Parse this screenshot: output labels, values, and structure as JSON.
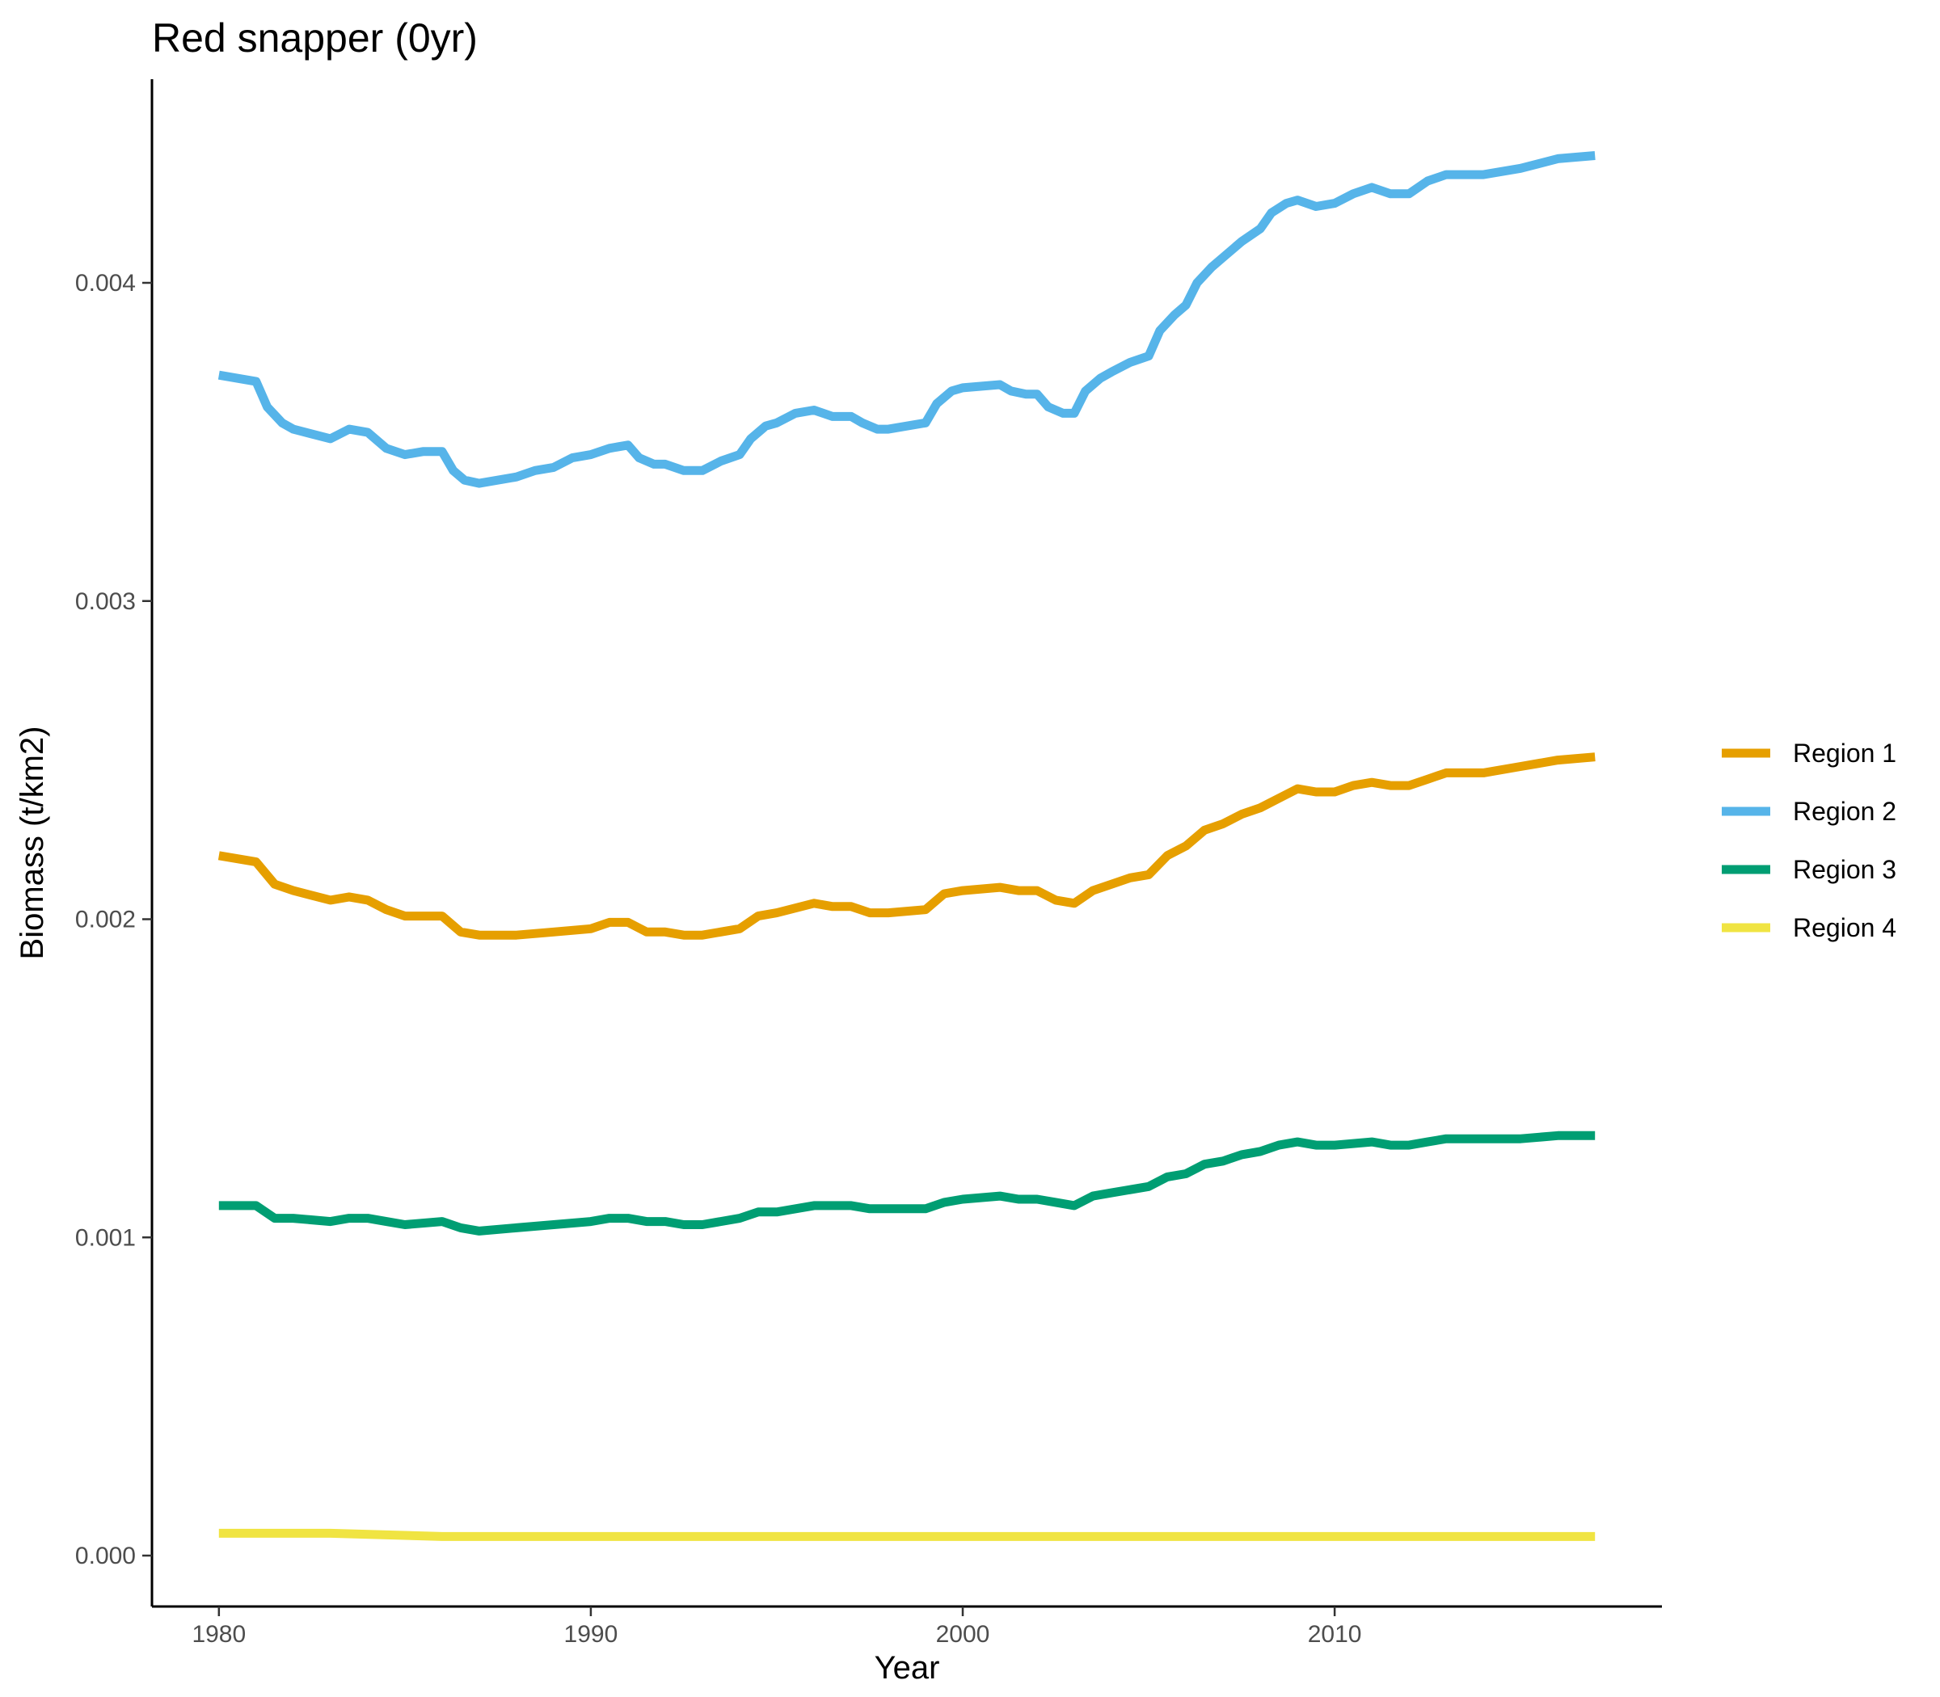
{
  "chart_data": {
    "type": "line",
    "title": "Red snapper (0yr)",
    "xlabel": "Year",
    "ylabel": "Biomass (t/km2)",
    "xlim": [
      1978.2,
      2018.8
    ],
    "ylim": [
      -0.00016,
      0.00464
    ],
    "x_ticks": [
      1980,
      1990,
      2000,
      2010
    ],
    "x_tick_labels": [
      "1980",
      "1990",
      "2000",
      "2010"
    ],
    "y_ticks": [
      0.0,
      0.001,
      0.002,
      0.003,
      0.004
    ],
    "y_tick_labels": [
      "0.000",
      "0.001",
      "0.002",
      "0.003",
      "0.004"
    ],
    "grid": false,
    "legend_position": "right",
    "series": [
      {
        "name": "Region 1",
        "color": "#E69F00",
        "points": [
          [
            1980,
            0.0022
          ],
          [
            1981,
            0.00218
          ],
          [
            1981.5,
            0.00211
          ],
          [
            1982,
            0.00209
          ],
          [
            1983,
            0.00206
          ],
          [
            1983.5,
            0.00207
          ],
          [
            1984,
            0.00206
          ],
          [
            1984.5,
            0.00203
          ],
          [
            1985,
            0.00201
          ],
          [
            1986,
            0.00201
          ],
          [
            1986.5,
            0.00196
          ],
          [
            1987,
            0.00195
          ],
          [
            1988,
            0.00195
          ],
          [
            1989,
            0.00196
          ],
          [
            1990,
            0.00197
          ],
          [
            1990.5,
            0.00199
          ],
          [
            1991,
            0.00199
          ],
          [
            1991.5,
            0.00196
          ],
          [
            1992,
            0.00196
          ],
          [
            1992.5,
            0.00195
          ],
          [
            1993,
            0.00195
          ],
          [
            1994,
            0.00197
          ],
          [
            1994.5,
            0.00201
          ],
          [
            1995,
            0.00202
          ],
          [
            1996,
            0.00205
          ],
          [
            1996.5,
            0.00204
          ],
          [
            1997,
            0.00204
          ],
          [
            1997.5,
            0.00202
          ],
          [
            1998,
            0.00202
          ],
          [
            1999,
            0.00203
          ],
          [
            1999.5,
            0.00208
          ],
          [
            2000,
            0.00209
          ],
          [
            2001,
            0.0021
          ],
          [
            2001.5,
            0.00209
          ],
          [
            2002,
            0.00209
          ],
          [
            2002.5,
            0.00206
          ],
          [
            2003,
            0.00205
          ],
          [
            2003.5,
            0.00209
          ],
          [
            2004,
            0.00211
          ],
          [
            2004.5,
            0.00213
          ],
          [
            2005,
            0.00214
          ],
          [
            2005.5,
            0.0022
          ],
          [
            2006,
            0.00223
          ],
          [
            2006.5,
            0.00228
          ],
          [
            2007,
            0.0023
          ],
          [
            2007.5,
            0.00233
          ],
          [
            2008,
            0.00235
          ],
          [
            2008.5,
            0.00238
          ],
          [
            2009,
            0.00241
          ],
          [
            2009.5,
            0.0024
          ],
          [
            2010,
            0.0024
          ],
          [
            2010.5,
            0.00242
          ],
          [
            2011,
            0.00243
          ],
          [
            2011.5,
            0.00242
          ],
          [
            2012,
            0.00242
          ],
          [
            2012.5,
            0.00244
          ],
          [
            2013,
            0.00246
          ],
          [
            2014,
            0.00246
          ],
          [
            2015,
            0.00248
          ],
          [
            2016,
            0.0025
          ],
          [
            2017,
            0.00251
          ]
        ]
      },
      {
        "name": "Region 2",
        "color": "#56B4E9",
        "points": [
          [
            1980,
            0.00371
          ],
          [
            1981,
            0.00369
          ],
          [
            1981.3,
            0.00361
          ],
          [
            1981.7,
            0.00356
          ],
          [
            1982,
            0.00354
          ],
          [
            1983,
            0.00351
          ],
          [
            1983.5,
            0.00354
          ],
          [
            1984,
            0.00353
          ],
          [
            1984.5,
            0.00348
          ],
          [
            1985,
            0.00346
          ],
          [
            1985.5,
            0.00347
          ],
          [
            1986,
            0.00347
          ],
          [
            1986.3,
            0.00341
          ],
          [
            1986.6,
            0.00338
          ],
          [
            1987,
            0.00337
          ],
          [
            1988,
            0.00339
          ],
          [
            1988.5,
            0.00341
          ],
          [
            1989,
            0.00342
          ],
          [
            1989.5,
            0.00345
          ],
          [
            1990,
            0.00346
          ],
          [
            1990.5,
            0.00348
          ],
          [
            1991,
            0.00349
          ],
          [
            1991.3,
            0.00345
          ],
          [
            1991.7,
            0.00343
          ],
          [
            1992,
            0.00343
          ],
          [
            1992.5,
            0.00341
          ],
          [
            1993,
            0.00341
          ],
          [
            1993.5,
            0.00344
          ],
          [
            1994,
            0.00346
          ],
          [
            1994.3,
            0.00351
          ],
          [
            1994.7,
            0.00355
          ],
          [
            1995,
            0.00356
          ],
          [
            1995.5,
            0.00359
          ],
          [
            1996,
            0.0036
          ],
          [
            1996.5,
            0.00358
          ],
          [
            1997,
            0.00358
          ],
          [
            1997.3,
            0.00356
          ],
          [
            1997.7,
            0.00354
          ],
          [
            1998,
            0.00354
          ],
          [
            1999,
            0.00356
          ],
          [
            1999.3,
            0.00362
          ],
          [
            1999.7,
            0.00366
          ],
          [
            2000,
            0.00367
          ],
          [
            2001,
            0.00368
          ],
          [
            2001.3,
            0.00366
          ],
          [
            2001.7,
            0.00365
          ],
          [
            2002,
            0.00365
          ],
          [
            2002.3,
            0.00361
          ],
          [
            2002.7,
            0.00359
          ],
          [
            2003,
            0.00359
          ],
          [
            2003.3,
            0.00366
          ],
          [
            2003.7,
            0.0037
          ],
          [
            2004,
            0.00372
          ],
          [
            2004.5,
            0.00375
          ],
          [
            2005,
            0.00377
          ],
          [
            2005.3,
            0.00385
          ],
          [
            2005.7,
            0.0039
          ],
          [
            2006,
            0.00393
          ],
          [
            2006.3,
            0.004
          ],
          [
            2006.7,
            0.00405
          ],
          [
            2007,
            0.00408
          ],
          [
            2007.5,
            0.00413
          ],
          [
            2008,
            0.00417
          ],
          [
            2008.3,
            0.00422
          ],
          [
            2008.7,
            0.00425
          ],
          [
            2009,
            0.00426
          ],
          [
            2009.5,
            0.00424
          ],
          [
            2010,
            0.00425
          ],
          [
            2010.5,
            0.00428
          ],
          [
            2011,
            0.0043
          ],
          [
            2011.5,
            0.00428
          ],
          [
            2012,
            0.00428
          ],
          [
            2012.5,
            0.00432
          ],
          [
            2013,
            0.00434
          ],
          [
            2014,
            0.00434
          ],
          [
            2015,
            0.00436
          ],
          [
            2016,
            0.00439
          ],
          [
            2017,
            0.0044
          ]
        ]
      },
      {
        "name": "Region 3",
        "color": "#009E73",
        "points": [
          [
            1980,
            0.0011
          ],
          [
            1981,
            0.0011
          ],
          [
            1981.5,
            0.00106
          ],
          [
            1982,
            0.00106
          ],
          [
            1983,
            0.00105
          ],
          [
            1983.5,
            0.00106
          ],
          [
            1984,
            0.00106
          ],
          [
            1984.5,
            0.00105
          ],
          [
            1985,
            0.00104
          ],
          [
            1986,
            0.00105
          ],
          [
            1986.5,
            0.00103
          ],
          [
            1987,
            0.00102
          ],
          [
            1988,
            0.00103
          ],
          [
            1989,
            0.00104
          ],
          [
            1990,
            0.00105
          ],
          [
            1990.5,
            0.00106
          ],
          [
            1991,
            0.00106
          ],
          [
            1991.5,
            0.00105
          ],
          [
            1992,
            0.00105
          ],
          [
            1992.5,
            0.00104
          ],
          [
            1993,
            0.00104
          ],
          [
            1994,
            0.00106
          ],
          [
            1994.5,
            0.00108
          ],
          [
            1995,
            0.00108
          ],
          [
            1996,
            0.0011
          ],
          [
            1996.5,
            0.0011
          ],
          [
            1997,
            0.0011
          ],
          [
            1997.5,
            0.00109
          ],
          [
            1998,
            0.00109
          ],
          [
            1999,
            0.00109
          ],
          [
            1999.5,
            0.00111
          ],
          [
            2000,
            0.00112
          ],
          [
            2001,
            0.00113
          ],
          [
            2001.5,
            0.00112
          ],
          [
            2002,
            0.00112
          ],
          [
            2002.5,
            0.00111
          ],
          [
            2003,
            0.0011
          ],
          [
            2003.5,
            0.00113
          ],
          [
            2004,
            0.00114
          ],
          [
            2005,
            0.00116
          ],
          [
            2005.5,
            0.00119
          ],
          [
            2006,
            0.0012
          ],
          [
            2006.5,
            0.00123
          ],
          [
            2007,
            0.00124
          ],
          [
            2007.5,
            0.00126
          ],
          [
            2008,
            0.00127
          ],
          [
            2008.5,
            0.00129
          ],
          [
            2009,
            0.0013
          ],
          [
            2009.5,
            0.00129
          ],
          [
            2010,
            0.00129
          ],
          [
            2011,
            0.0013
          ],
          [
            2011.5,
            0.00129
          ],
          [
            2012,
            0.00129
          ],
          [
            2012.5,
            0.0013
          ],
          [
            2013,
            0.00131
          ],
          [
            2014,
            0.00131
          ],
          [
            2015,
            0.00131
          ],
          [
            2016,
            0.00132
          ],
          [
            2017,
            0.00132
          ]
        ]
      },
      {
        "name": "Region 4",
        "color": "#F0E442",
        "points": [
          [
            1980,
            7e-05
          ],
          [
            1983,
            7e-05
          ],
          [
            1986,
            6e-05
          ],
          [
            1990,
            6e-05
          ],
          [
            1995,
            6e-05
          ],
          [
            1998,
            6e-05
          ],
          [
            2003,
            6e-05
          ],
          [
            2008,
            6e-05
          ],
          [
            2012,
            6e-05
          ],
          [
            2017,
            6e-05
          ]
        ]
      }
    ]
  }
}
